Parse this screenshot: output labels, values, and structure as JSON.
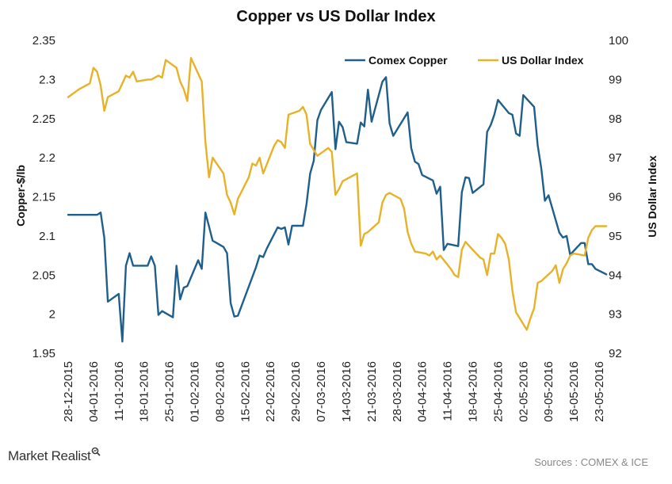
{
  "footer": {
    "brand": "Market Realist",
    "source": "Sources : COMEX & ICE"
  },
  "chart_data": {
    "type": "line",
    "title": "Copper vs US Dollar Index",
    "ylabel_left": "Copper-$/lb",
    "ylabel_right": "US Dollar Index",
    "ylim_left": [
      1.95,
      2.35
    ],
    "yticks_left": [
      "1.95",
      "2",
      "2.05",
      "2.1",
      "2.15",
      "2.2",
      "2.25",
      "2.3",
      "2.35"
    ],
    "ylim_right": [
      92,
      100
    ],
    "yticks_right": [
      "92",
      "93",
      "94",
      "95",
      "96",
      "97",
      "98",
      "99",
      "100"
    ],
    "xlim": [
      "2015-12-28",
      "2016-05-23"
    ],
    "xticks": [
      "28-12-2015",
      "04-01-2016",
      "11-01-2016",
      "18-01-2016",
      "25-01-2016",
      "01-02-2016",
      "08-02-2016",
      "15-02-2016",
      "22-02-2016",
      "29-02-2016",
      "07-03-2016",
      "14-03-2016",
      "21-03-2016",
      "28-03-2016",
      "04-04-2016",
      "11-04-2016",
      "18-04-2016",
      "25-04-2016",
      "02-05-2016",
      "09-05-2016",
      "16-05-2016",
      "23-05-2016"
    ],
    "legend_position": "top-right",
    "grid": false,
    "series": [
      {
        "name": "Comex Copper",
        "axis": "left",
        "color": "#1f5f8b",
        "points": [
          [
            "2015-12-28",
            2.127
          ],
          [
            "2015-12-29",
            2.127
          ],
          [
            "2015-12-30",
            2.127
          ],
          [
            "2015-12-31",
            2.127
          ],
          [
            "2016-01-01",
            2.127
          ],
          [
            "2016-01-02",
            2.127
          ],
          [
            "2016-01-03",
            2.127
          ],
          [
            "2016-01-04",
            2.127
          ],
          [
            "2016-01-05",
            2.127
          ],
          [
            "2016-01-06",
            2.13
          ],
          [
            "2016-01-07",
            2.098
          ],
          [
            "2016-01-08",
            2.016
          ],
          [
            "2016-01-11",
            2.026
          ],
          [
            "2016-01-12",
            1.965
          ],
          [
            "2016-01-13",
            2.062
          ],
          [
            "2016-01-14",
            2.078
          ],
          [
            "2016-01-15",
            2.062
          ],
          [
            "2016-01-18",
            2.062
          ],
          [
            "2016-01-19",
            2.062
          ],
          [
            "2016-01-20",
            2.074
          ],
          [
            "2016-01-21",
            2.062
          ],
          [
            "2016-01-22",
            1.999
          ],
          [
            "2016-01-23",
            2.004
          ],
          [
            "2016-01-26",
            1.996
          ],
          [
            "2016-01-27",
            2.062
          ],
          [
            "2016-01-28",
            2.019
          ],
          [
            "2016-01-29",
            2.034
          ],
          [
            "2016-01-30",
            2.036
          ],
          [
            "2016-02-02",
            2.069
          ],
          [
            "2016-02-03",
            2.058
          ],
          [
            "2016-02-04",
            2.13
          ],
          [
            "2016-02-05",
            2.112
          ],
          [
            "2016-02-06",
            2.094
          ],
          [
            "2016-02-09",
            2.086
          ],
          [
            "2016-02-10",
            2.078
          ],
          [
            "2016-02-11",
            2.014
          ],
          [
            "2016-02-12",
            1.997
          ],
          [
            "2016-02-13",
            1.998
          ],
          [
            "2016-02-18",
            2.06
          ],
          [
            "2016-02-19",
            2.075
          ],
          [
            "2016-02-20",
            2.073
          ],
          [
            "2016-02-21",
            2.084
          ],
          [
            "2016-02-24",
            2.111
          ],
          [
            "2016-02-25",
            2.109
          ],
          [
            "2016-02-26",
            2.111
          ],
          [
            "2016-02-27",
            2.089
          ],
          [
            "2016-02-28",
            2.113
          ],
          [
            "2016-03-02",
            2.113
          ],
          [
            "2016-03-03",
            2.141
          ],
          [
            "2016-03-04",
            2.18
          ],
          [
            "2016-03-05",
            2.196
          ],
          [
            "2016-03-06",
            2.248
          ],
          [
            "2016-03-07",
            2.261
          ],
          [
            "2016-03-10",
            2.284
          ],
          [
            "2016-03-11",
            2.211
          ],
          [
            "2016-03-12",
            2.246
          ],
          [
            "2016-03-13",
            2.239
          ],
          [
            "2016-03-14",
            2.22
          ],
          [
            "2016-03-17",
            2.218
          ],
          [
            "2016-03-18",
            2.245
          ],
          [
            "2016-03-19",
            2.24
          ],
          [
            "2016-03-20",
            2.287
          ],
          [
            "2016-03-21",
            2.246
          ],
          [
            "2016-03-24",
            2.297
          ],
          [
            "2016-03-25",
            2.303
          ],
          [
            "2016-03-26",
            2.244
          ],
          [
            "2016-03-27",
            2.228
          ],
          [
            "2016-03-31",
            2.258
          ],
          [
            "2016-04-01",
            2.212
          ],
          [
            "2016-04-02",
            2.195
          ],
          [
            "2016-04-03",
            2.192
          ],
          [
            "2016-04-04",
            2.178
          ],
          [
            "2016-04-07",
            2.171
          ],
          [
            "2016-04-08",
            2.154
          ],
          [
            "2016-04-09",
            2.163
          ],
          [
            "2016-04-10",
            2.082
          ],
          [
            "2016-04-11",
            2.09
          ],
          [
            "2016-04-14",
            2.087
          ],
          [
            "2016-04-15",
            2.156
          ],
          [
            "2016-04-16",
            2.175
          ],
          [
            "2016-04-17",
            2.174
          ],
          [
            "2016-04-18",
            2.155
          ],
          [
            "2016-04-21",
            2.166
          ],
          [
            "2016-04-22",
            2.233
          ],
          [
            "2016-04-23",
            2.242
          ],
          [
            "2016-04-24",
            2.255
          ],
          [
            "2016-04-25",
            2.274
          ],
          [
            "2016-04-28",
            2.257
          ],
          [
            "2016-04-29",
            2.255
          ],
          [
            "2016-04-30",
            2.231
          ],
          [
            "2016-05-01",
            2.228
          ],
          [
            "2016-05-02",
            2.28
          ],
          [
            "2016-05-05",
            2.265
          ],
          [
            "2016-05-06",
            2.216
          ],
          [
            "2016-05-07",
            2.186
          ],
          [
            "2016-05-08",
            2.145
          ],
          [
            "2016-05-09",
            2.152
          ],
          [
            "2016-05-12",
            2.104
          ],
          [
            "2016-05-13",
            2.098
          ],
          [
            "2016-05-14",
            2.1
          ],
          [
            "2016-05-15",
            2.076
          ],
          [
            "2016-05-18",
            2.091
          ],
          [
            "2016-05-19",
            2.091
          ],
          [
            "2016-05-20",
            2.064
          ],
          [
            "2016-05-21",
            2.064
          ],
          [
            "2016-05-22",
            2.058
          ],
          [
            "2016-05-25",
            2.051
          ]
        ]
      },
      {
        "name": "US Dollar Index",
        "axis": "right",
        "color": "#e8b228",
        "points": [
          [
            "2015-12-28",
            98.55
          ],
          [
            "2015-12-31",
            98.75
          ],
          [
            "2016-01-03",
            98.9
          ],
          [
            "2016-01-04",
            99.3
          ],
          [
            "2016-01-05",
            99.2
          ],
          [
            "2016-01-06",
            98.85
          ],
          [
            "2016-01-07",
            98.2
          ],
          [
            "2016-01-08",
            98.55
          ],
          [
            "2016-01-11",
            98.7
          ],
          [
            "2016-01-12",
            98.9
          ],
          [
            "2016-01-13",
            99.1
          ],
          [
            "2016-01-14",
            99.05
          ],
          [
            "2016-01-15",
            99.2
          ],
          [
            "2016-01-16",
            98.95
          ],
          [
            "2016-01-19",
            99.0
          ],
          [
            "2016-01-20",
            99.0
          ],
          [
            "2016-01-21",
            99.05
          ],
          [
            "2016-01-22",
            99.1
          ],
          [
            "2016-01-23",
            99.05
          ],
          [
            "2016-01-24",
            99.5
          ],
          [
            "2016-01-27",
            99.3
          ],
          [
            "2016-01-28",
            98.95
          ],
          [
            "2016-01-29",
            98.75
          ],
          [
            "2016-01-30",
            98.45
          ],
          [
            "2016-01-31",
            99.55
          ],
          [
            "2016-02-03",
            98.95
          ],
          [
            "2016-02-04",
            97.4
          ],
          [
            "2016-02-05",
            96.5
          ],
          [
            "2016-02-06",
            97.0
          ],
          [
            "2016-02-09",
            96.6
          ],
          [
            "2016-02-10",
            96.05
          ],
          [
            "2016-02-11",
            95.85
          ],
          [
            "2016-02-12",
            95.55
          ],
          [
            "2016-02-13",
            95.95
          ],
          [
            "2016-02-16",
            96.5
          ],
          [
            "2016-02-17",
            96.85
          ],
          [
            "2016-02-18",
            96.8
          ],
          [
            "2016-02-19",
            97.0
          ],
          [
            "2016-02-20",
            96.6
          ],
          [
            "2016-02-23",
            97.3
          ],
          [
            "2016-02-24",
            97.45
          ],
          [
            "2016-02-25",
            97.4
          ],
          [
            "2016-02-26",
            97.25
          ],
          [
            "2016-02-27",
            98.1
          ],
          [
            "2016-03-01",
            98.2
          ],
          [
            "2016-03-02",
            98.3
          ],
          [
            "2016-03-03",
            98.1
          ],
          [
            "2016-03-04",
            97.35
          ],
          [
            "2016-03-05",
            97.2
          ],
          [
            "2016-03-06",
            97.05
          ],
          [
            "2016-03-09",
            97.25
          ],
          [
            "2016-03-10",
            97.15
          ],
          [
            "2016-03-11",
            96.05
          ],
          [
            "2016-03-12",
            96.2
          ],
          [
            "2016-03-13",
            96.4
          ],
          [
            "2016-03-16",
            96.55
          ],
          [
            "2016-03-17",
            96.6
          ],
          [
            "2016-03-18",
            94.75
          ],
          [
            "2016-03-19",
            95.05
          ],
          [
            "2016-03-20",
            95.1
          ],
          [
            "2016-03-23",
            95.35
          ],
          [
            "2016-03-24",
            95.85
          ],
          [
            "2016-03-25",
            96.05
          ],
          [
            "2016-03-26",
            96.1
          ],
          [
            "2016-03-29",
            95.95
          ],
          [
            "2016-03-30",
            95.7
          ],
          [
            "2016-03-31",
            95.1
          ],
          [
            "2016-04-01",
            94.8
          ],
          [
            "2016-04-02",
            94.6
          ],
          [
            "2016-04-05",
            94.55
          ],
          [
            "2016-04-06",
            94.5
          ],
          [
            "2016-04-07",
            94.6
          ],
          [
            "2016-04-08",
            94.4
          ],
          [
            "2016-04-09",
            94.5
          ],
          [
            "2016-04-12",
            94.15
          ],
          [
            "2016-04-13",
            94.0
          ],
          [
            "2016-04-14",
            93.95
          ],
          [
            "2016-04-15",
            94.65
          ],
          [
            "2016-04-16",
            94.85
          ],
          [
            "2016-04-19",
            94.55
          ],
          [
            "2016-04-20",
            94.45
          ],
          [
            "2016-04-21",
            94.4
          ],
          [
            "2016-04-22",
            94.0
          ],
          [
            "2016-04-23",
            94.55
          ],
          [
            "2016-04-24",
            94.55
          ],
          [
            "2016-04-25",
            95.05
          ],
          [
            "2016-04-26",
            94.95
          ],
          [
            "2016-04-27",
            94.8
          ],
          [
            "2016-04-28",
            94.4
          ],
          [
            "2016-04-29",
            93.6
          ],
          [
            "2016-04-30",
            93.05
          ],
          [
            "2016-05-03",
            92.6
          ],
          [
            "2016-05-04",
            92.9
          ],
          [
            "2016-05-05",
            93.15
          ],
          [
            "2016-05-06",
            93.8
          ],
          [
            "2016-05-07",
            93.85
          ],
          [
            "2016-05-10",
            94.1
          ],
          [
            "2016-05-11",
            94.25
          ],
          [
            "2016-05-12",
            93.8
          ],
          [
            "2016-05-13",
            94.15
          ],
          [
            "2016-05-14",
            94.3
          ],
          [
            "2016-05-15",
            94.5
          ],
          [
            "2016-05-16",
            94.55
          ],
          [
            "2016-05-19",
            94.5
          ],
          [
            "2016-05-20",
            94.95
          ],
          [
            "2016-05-21",
            95.15
          ],
          [
            "2016-05-22",
            95.25
          ],
          [
            "2016-05-25",
            95.25
          ]
        ]
      }
    ]
  }
}
